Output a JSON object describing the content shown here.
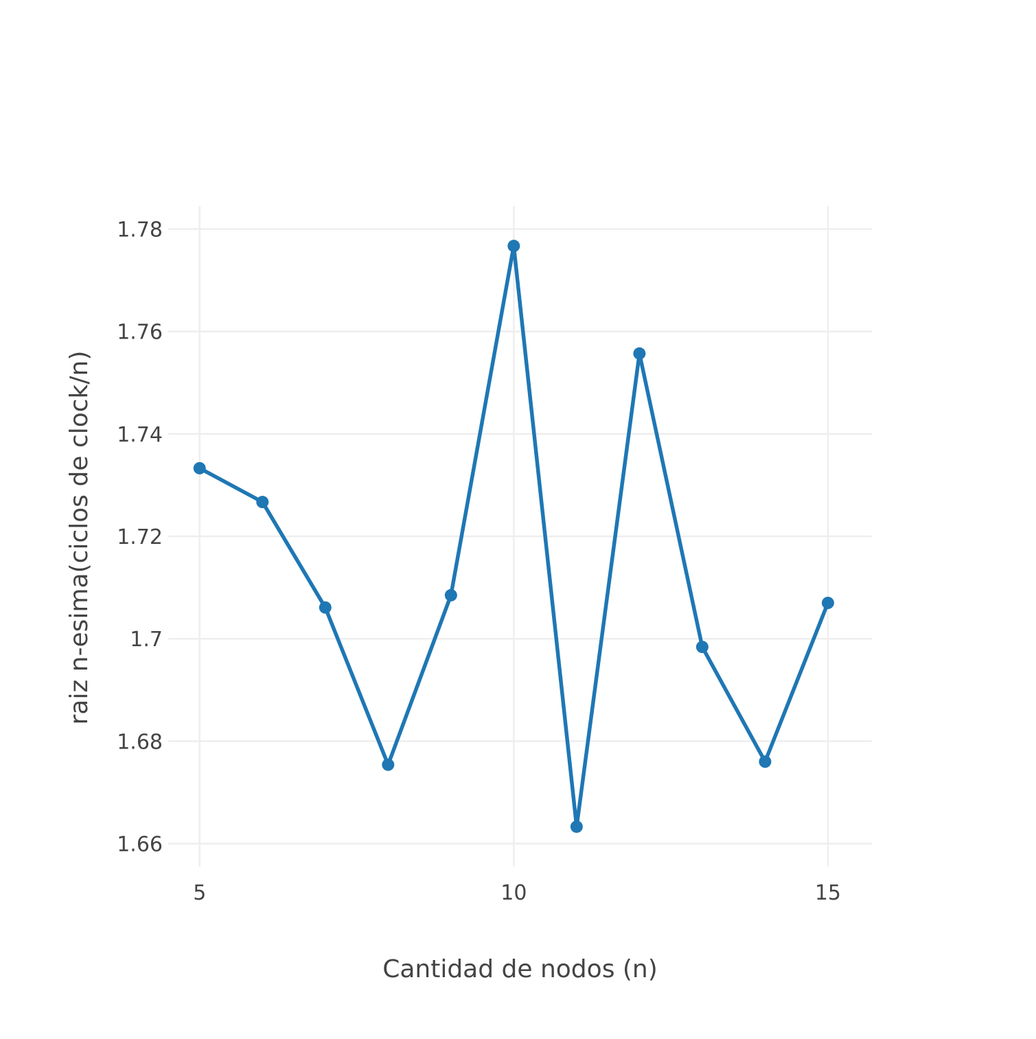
{
  "chart_data": {
    "type": "line",
    "title": "",
    "xlabel": "Cantidad de nodos (n)",
    "ylabel": "raiz n-esima(ciclos de clock/n)",
    "xlim": [
      4.5,
      15.7
    ],
    "ylim": [
      1.6555,
      1.7845
    ],
    "x_ticks": [
      5,
      10,
      15
    ],
    "x_tick_labels": [
      "5",
      "10",
      "15"
    ],
    "y_ticks": [
      1.66,
      1.68,
      1.7,
      1.72,
      1.74,
      1.76,
      1.78
    ],
    "y_tick_labels": [
      "1.66",
      "1.68",
      "1.7",
      "1.72",
      "1.74",
      "1.76",
      "1.78"
    ],
    "grid": true,
    "legend": "none",
    "series": [
      {
        "color": "#1f77b4",
        "mode": "lines+markers",
        "x": [
          5,
          6,
          7,
          8,
          9,
          10,
          11,
          12,
          13,
          14,
          15
        ],
        "y": [
          1.7333,
          1.7267,
          1.7061,
          1.6754,
          1.7085,
          1.7767,
          1.6633,
          1.7557,
          1.6984,
          1.676,
          1.707
        ]
      }
    ]
  }
}
